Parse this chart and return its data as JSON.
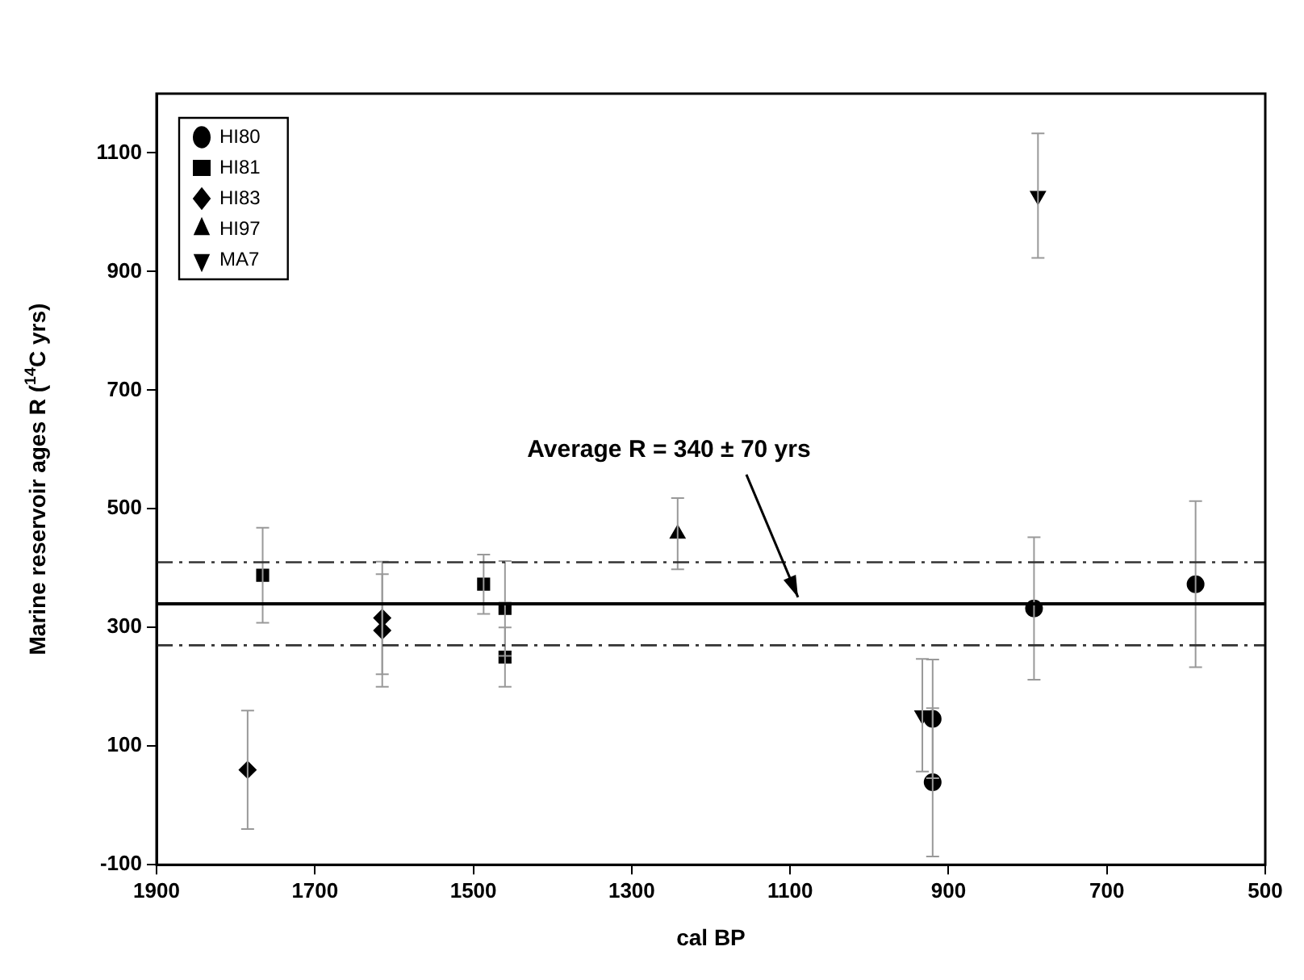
{
  "chart_data": {
    "type": "scatter",
    "xlabel": "cal BP",
    "ylabel": "Marine reservoir ages R ($^{14}$C yrs)",
    "xlim": [
      1900,
      500
    ],
    "xticks": [
      1900,
      1700,
      1500,
      1300,
      1100,
      900,
      700,
      500
    ],
    "ylim": [
      -100,
      1200
    ],
    "yticks": [
      -100,
      100,
      300,
      500,
      700,
      900,
      1100
    ],
    "grid": false,
    "legend": "top left",
    "series": [
      {
        "name": "HI80",
        "color": "#000000",
        "marker": "circle",
        "x": [
          920,
          920,
          792,
          588
        ],
        "values": [
          146,
          39,
          332,
          373
        ],
        "errors": [
          100,
          125,
          120,
          140
        ]
      },
      {
        "name": "HI81",
        "color": "#000000",
        "marker": "square",
        "x": [
          1766,
          1487,
          1460,
          1460
        ],
        "values": [
          388,
          373,
          332,
          250
        ],
        "errors": [
          80,
          50,
          80,
          50
        ]
      },
      {
        "name": "HI83",
        "color": "#000000",
        "marker": "diamond",
        "x": [
          1785,
          1615,
          1615
        ],
        "values": [
          60,
          316,
          295
        ],
        "errors": [
          100,
          95,
          95
        ]
      },
      {
        "name": "HI97",
        "color": "#000000",
        "marker": "triangle",
        "x": [
          1242
        ],
        "values": [
          458
        ],
        "errors": [
          60
        ]
      },
      {
        "name": "MA7",
        "color": "#000000",
        "marker": "triangle-down",
        "x": [
          787,
          933
        ],
        "values": [
          1028,
          152
        ],
        "errors": [
          105,
          95
        ]
      }
    ],
    "ref_lines": [
      {
        "axis": "y",
        "value": 340,
        "color": "#000000",
        "line_style": "solid"
      },
      {
        "axis": "y",
        "value": 410,
        "color": "#333333",
        "line_style": "dashdot"
      },
      {
        "axis": "y",
        "value": 270,
        "color": "#333333",
        "line_style": "dashdot"
      }
    ],
    "annotations": [
      {
        "text": "Average R = 340 ± 70 yrs",
        "x": 1090,
        "y": 340
      }
    ]
  }
}
